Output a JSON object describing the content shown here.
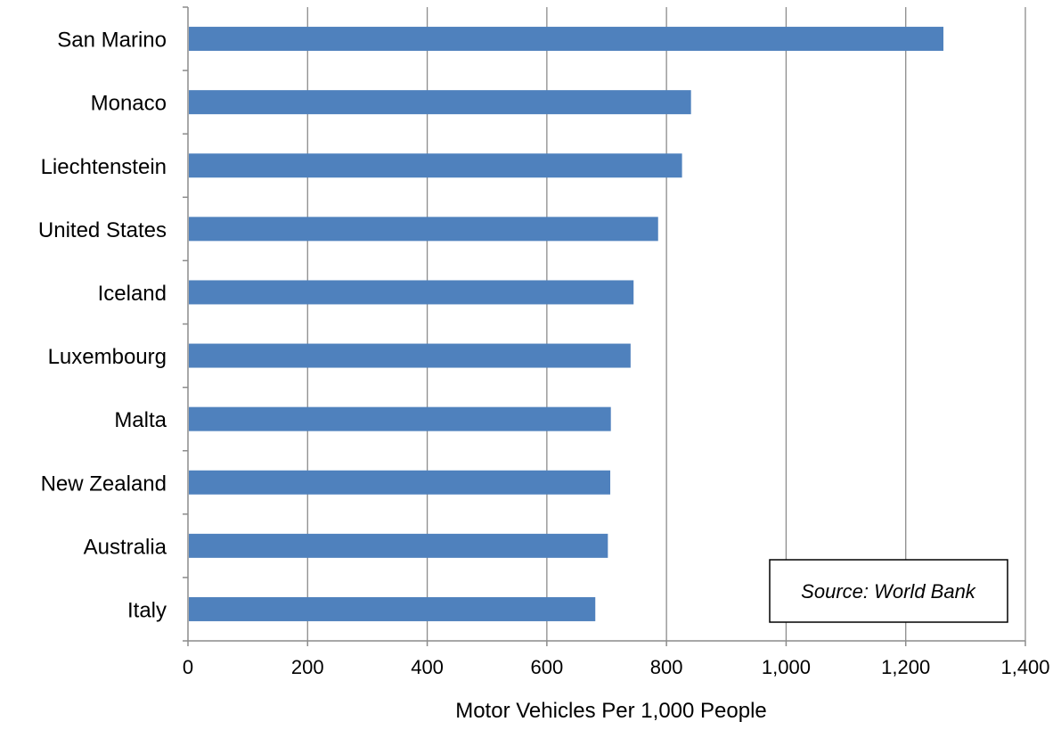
{
  "chart_data": {
    "type": "bar",
    "orientation": "horizontal",
    "title": "",
    "xlabel": "Motor Vehicles Per 1,000 People",
    "ylabel": "",
    "categories": [
      "San Marino",
      "Monaco",
      "Liechtenstein",
      "United States",
      "Iceland",
      "Luxembourg",
      "Malta",
      "New Zealand",
      "Australia",
      "Italy"
    ],
    "values": [
      1263,
      841,
      826,
      786,
      745,
      740,
      707,
      706,
      702,
      681
    ],
    "xlim": [
      0,
      1400
    ],
    "xticks": [
      0,
      200,
      400,
      600,
      800,
      1000,
      1200,
      1400
    ],
    "xtick_labels": [
      "0",
      "200",
      "400",
      "600",
      "800",
      "1,000",
      "1,200",
      "1,400"
    ],
    "grid": "vertical",
    "bar_color": "#4f81bd",
    "annotation": "Source: World Bank"
  }
}
